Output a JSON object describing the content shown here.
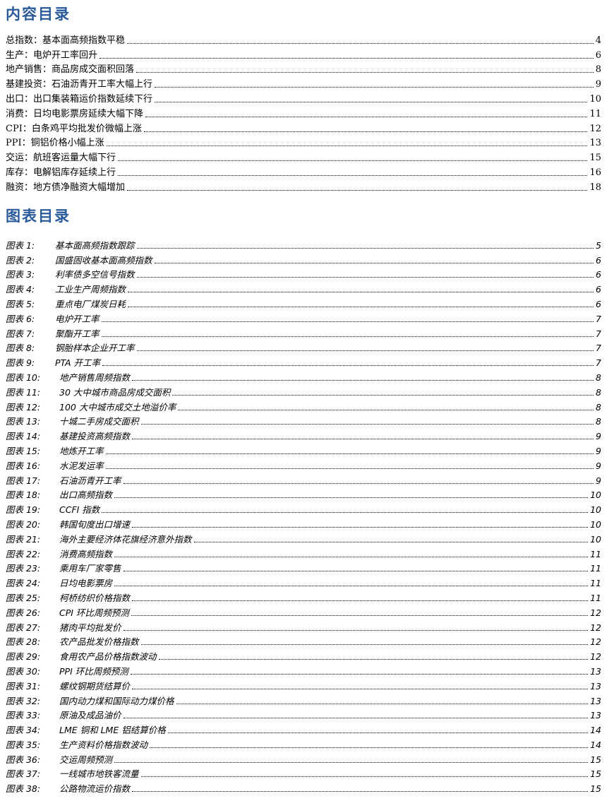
{
  "contents_title": "内容目录",
  "figures_title": "图表目录",
  "contents": [
    {
      "title": "总指数：基本面高频指数平稳",
      "page": "4"
    },
    {
      "title": "生产：电炉开工率回升",
      "page": "6"
    },
    {
      "title": "地产销售：商品房成交面积回落",
      "page": "8"
    },
    {
      "title": "基建投资：石油沥青开工率大幅上行",
      "page": "9"
    },
    {
      "title": "出口：出口集装箱运价指数延续下行",
      "page": "10"
    },
    {
      "title": "消费：日均电影票房延续大幅下降",
      "page": "11"
    },
    {
      "title": "CPI：白条鸡平均批发价微幅上涨",
      "page": "12"
    },
    {
      "title": "PPI：铜铝价格小幅上涨",
      "page": "13"
    },
    {
      "title": "交运：航班客运量大幅下行",
      "page": "15"
    },
    {
      "title": "库存：电解铝库存延续上行",
      "page": "16"
    },
    {
      "title": "融资：地方债净融资大幅增加",
      "page": "18"
    }
  ],
  "figures": [
    {
      "label": "图表 1:",
      "title": "基本面高频指数跟踪",
      "page": "5"
    },
    {
      "label": "图表 2:",
      "title": "国盛固收基本面高频指数",
      "page": "6"
    },
    {
      "label": "图表 3:",
      "title": "利率债多空信号指数",
      "page": "6"
    },
    {
      "label": "图表 4:",
      "title": "工业生产周频指数",
      "page": "6"
    },
    {
      "label": "图表 5:",
      "title": "重点电厂煤炭日耗",
      "page": "6"
    },
    {
      "label": "图表 6:",
      "title": "电炉开工率",
      "page": "7"
    },
    {
      "label": "图表 7:",
      "title": "聚酯开工率",
      "page": "7"
    },
    {
      "label": "图表 8:",
      "title": "钢胎样本企业开工率",
      "page": "7"
    },
    {
      "label": "图表 9:",
      "title": "PTA 开工率",
      "page": "7"
    },
    {
      "label": "图表 10:",
      "title": "地产销售周频指数",
      "page": "8"
    },
    {
      "label": "图表 11:",
      "title": "30 大中城市商品房成交面积",
      "page": "8"
    },
    {
      "label": "图表 12:",
      "title": "100 大中城市成交土地溢价率",
      "page": "8"
    },
    {
      "label": "图表 13:",
      "title": "十城二手房成交面积",
      "page": "8"
    },
    {
      "label": "图表 14:",
      "title": "基建投资高频指数",
      "page": "9"
    },
    {
      "label": "图表 15:",
      "title": "地炼开工率",
      "page": "9"
    },
    {
      "label": "图表 16:",
      "title": "水泥发运率",
      "page": "9"
    },
    {
      "label": "图表 17:",
      "title": "石油沥青开工率",
      "page": "9"
    },
    {
      "label": "图表 18:",
      "title": "出口高频指数",
      "page": "10"
    },
    {
      "label": "图表 19:",
      "title": "CCFI 指数",
      "page": "10"
    },
    {
      "label": "图表 20:",
      "title": "韩国旬度出口增速",
      "page": "10"
    },
    {
      "label": "图表 21:",
      "title": "海外主要经济体花旗经济意外指数",
      "page": "10"
    },
    {
      "label": "图表 22:",
      "title": "消费高频指数",
      "page": "11"
    },
    {
      "label": "图表 23:",
      "title": "乘用车厂家零售",
      "page": "11"
    },
    {
      "label": "图表 24:",
      "title": "日均电影票房",
      "page": "11"
    },
    {
      "label": "图表 25:",
      "title": "柯桥纺织价格指数",
      "page": "11"
    },
    {
      "label": "图表 26:",
      "title": "CPI 环比周频预测",
      "page": "12"
    },
    {
      "label": "图表 27:",
      "title": "猪肉平均批发价",
      "page": "12"
    },
    {
      "label": "图表 28:",
      "title": "农产品批发价格指数",
      "page": "12"
    },
    {
      "label": "图表 29:",
      "title": "食用农产品价格指数波动",
      "page": "12"
    },
    {
      "label": "图表 30:",
      "title": "PPI 环比周频预测",
      "page": "13"
    },
    {
      "label": "图表 31:",
      "title": "螺纹钢期货结算价",
      "page": "13"
    },
    {
      "label": "图表 32:",
      "title": "国内动力煤和国际动力煤价格",
      "page": "13"
    },
    {
      "label": "图表 33:",
      "title": "原油及成品油价",
      "page": "13"
    },
    {
      "label": "图表 34:",
      "title": "LME 铜和 LME 铝结算价格",
      "page": "14"
    },
    {
      "label": "图表 35:",
      "title": "生产资料价格指数波动",
      "page": "14"
    },
    {
      "label": "图表 36:",
      "title": "交运周频预测",
      "page": "15"
    },
    {
      "label": "图表 37:",
      "title": "一线城市地铁客流量",
      "page": "15"
    },
    {
      "label": "图表 38:",
      "title": "公路物流运价指数",
      "page": "15"
    }
  ]
}
